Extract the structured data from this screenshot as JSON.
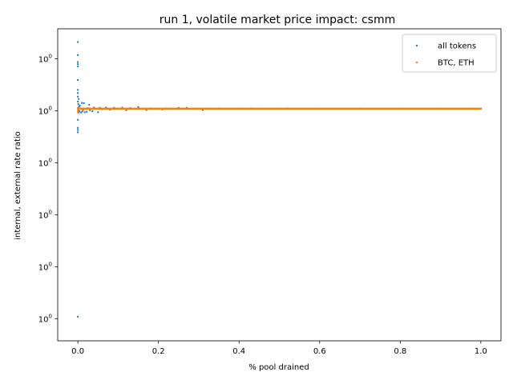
{
  "chart_data": {
    "type": "scatter",
    "title": "run 1, volatile market price impact: csmm",
    "xlabel": "% pool drained",
    "ylabel": "internal, external rate ratio",
    "xlim": [
      -0.05,
      1.05
    ],
    "ylim": [
      0.91,
      1.03
    ],
    "x_ticks": [
      0.0,
      0.2,
      0.4,
      0.6,
      0.8,
      1.0
    ],
    "x_tick_labels": [
      "0.0",
      "0.2",
      "0.4",
      "0.6",
      "0.8",
      "1.0"
    ],
    "y_ticks": [
      0.9185,
      0.9385,
      0.9585,
      0.9785,
      0.9985,
      1.0185
    ],
    "y_tick_labels": [
      "10^0",
      "10^0",
      "10^0",
      "10^0",
      "10^0",
      "10^0"
    ],
    "grid": false,
    "legend_position": "top-right",
    "series": [
      {
        "name": "all tokens",
        "color": "#1f77b4",
        "points": [
          [
            0.0,
            1.0249
          ],
          [
            0.0,
            1.0199
          ],
          [
            0.0,
            1.0172
          ],
          [
            0.0,
            1.0164
          ],
          [
            0.0,
            1.0155
          ],
          [
            0.0,
            1.0103
          ],
          [
            0.0,
            1.0065
          ],
          [
            0.0,
            1.0053
          ],
          [
            0.0,
            1.0039
          ],
          [
            0.0,
            1.002
          ],
          [
            0.0,
            0.995
          ],
          [
            0.0,
            0.9919
          ],
          [
            0.0,
            0.9911
          ],
          [
            0.0,
            0.9902
          ],
          [
            0.0,
            0.9193
          ],
          [
            0.001,
            1.001
          ],
          [
            0.001,
            0.9996
          ],
          [
            0.001,
            0.9979
          ],
          [
            0.002,
            1.003
          ],
          [
            0.002,
            0.999
          ],
          [
            0.002,
            0.9978
          ],
          [
            0.003,
            1.0001
          ],
          [
            0.004,
            0.9983
          ],
          [
            0.005,
            1.0005
          ],
          [
            0.006,
            0.9994
          ],
          [
            0.008,
            0.9978
          ],
          [
            0.01,
            1.0015
          ],
          [
            0.011,
            0.9982
          ],
          [
            0.013,
            0.9988
          ],
          [
            0.015,
            1.0014
          ],
          [
            0.017,
            0.9979
          ],
          [
            0.02,
            0.9993
          ],
          [
            0.022,
            0.9981
          ],
          [
            0.025,
            0.9995
          ],
          [
            0.028,
            1.0008
          ],
          [
            0.03,
            0.9987
          ],
          [
            0.033,
            0.9992
          ],
          [
            0.036,
            0.9983
          ],
          [
            0.04,
            0.9997
          ],
          [
            0.045,
            0.9993
          ],
          [
            0.05,
            0.9979
          ],
          [
            0.055,
            0.9996
          ],
          [
            0.06,
            0.9991
          ],
          [
            0.07,
            0.9997
          ],
          [
            0.08,
            0.9989
          ],
          [
            0.09,
            0.9996
          ],
          [
            0.1,
            0.9993
          ],
          [
            0.11,
            0.9997
          ],
          [
            0.12,
            0.9987
          ],
          [
            0.13,
            0.9995
          ],
          [
            0.15,
            0.9999
          ],
          [
            0.16,
            0.9993
          ],
          [
            0.17,
            0.9988
          ],
          [
            0.18,
            0.9994
          ],
          [
            0.2,
            0.9992
          ],
          [
            0.21,
            0.999
          ],
          [
            0.22,
            0.9994
          ],
          [
            0.25,
            0.9996
          ],
          [
            0.26,
            0.9993
          ],
          [
            0.27,
            0.9996
          ],
          [
            0.3,
            0.9993
          ],
          [
            0.31,
            0.9988
          ],
          [
            0.32,
            0.9994
          ],
          [
            0.33,
            0.9993
          ],
          [
            0.35,
            0.9994
          ],
          [
            0.4,
            0.9994
          ],
          [
            0.41,
            0.9993
          ],
          [
            0.43,
            0.9994
          ],
          [
            0.45,
            0.9993
          ],
          [
            0.5,
            0.9993
          ],
          [
            0.52,
            0.9994
          ],
          [
            0.6,
            0.9993
          ],
          [
            0.7,
            0.9993
          ],
          [
            0.8,
            0.9993
          ],
          [
            0.9,
            0.9993
          ],
          [
            0.98,
            0.9993
          ],
          [
            1.0,
            0.9993
          ]
        ]
      },
      {
        "name": "BTC, ETH",
        "color": "#ff7f0e",
        "points": [
          [
            0.0,
            0.9993
          ],
          [
            0.0,
            0.9985
          ],
          [
            0.0,
            0.9978
          ],
          [
            0.0,
            0.9995
          ],
          [
            0.001,
            0.9993
          ],
          [
            0.003,
            0.9993
          ],
          [
            0.005,
            0.9993
          ],
          [
            0.008,
            0.9993
          ],
          [
            0.012,
            0.9993
          ],
          [
            0.02,
            0.9993
          ],
          [
            0.05,
            0.9993
          ],
          [
            0.1,
            0.9993
          ],
          [
            0.2,
            0.9993
          ],
          [
            0.3,
            0.9993
          ],
          [
            0.4,
            0.9993
          ],
          [
            0.5,
            0.9993
          ],
          [
            0.6,
            0.9993
          ],
          [
            0.7,
            0.9993
          ],
          [
            0.8,
            0.9993
          ],
          [
            0.9,
            0.9993
          ],
          [
            1.0,
            0.9993
          ]
        ]
      }
    ]
  }
}
